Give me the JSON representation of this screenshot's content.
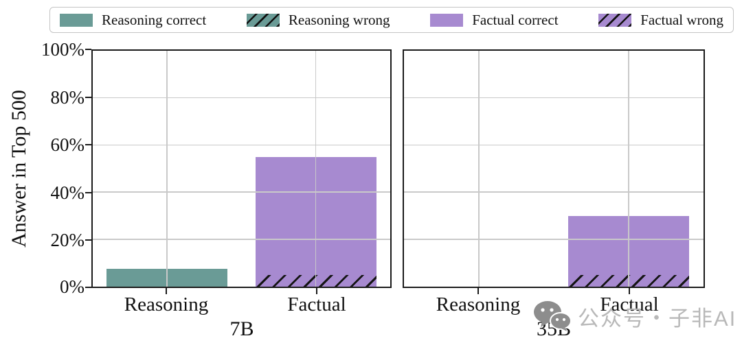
{
  "figure": {
    "legend": {
      "items": [
        {
          "label": "Reasoning correct",
          "swatch": "teal-solid"
        },
        {
          "label": "Reasoning wrong",
          "swatch": "teal-hatched"
        },
        {
          "label": "Factual correct",
          "swatch": "purple-solid"
        },
        {
          "label": "Factual wrong",
          "swatch": "purple-hatched"
        }
      ]
    },
    "y_axis": {
      "label": "Answer in Top 500",
      "tick_labels": [
        "100%",
        "80%",
        "60%",
        "40%",
        "20%",
        "0%"
      ]
    },
    "subplots": [
      {
        "xlabel": "7B",
        "x_tick_labels": [
          "Reasoning",
          "Factual"
        ],
        "bars": [
          {
            "category": "Reasoning",
            "color_key": "teal",
            "solid_pct": 7.5,
            "hatched_pct": 0
          },
          {
            "category": "Factual",
            "color_key": "purple",
            "solid_pct": 50,
            "hatched_pct": 5
          }
        ]
      },
      {
        "xlabel": "35B",
        "x_tick_labels": [
          "Reasoning",
          "Factual"
        ],
        "bars": [
          {
            "category": "Reasoning",
            "color_key": "teal",
            "solid_pct": 0,
            "hatched_pct": 0
          },
          {
            "category": "Factual",
            "color_key": "purple",
            "solid_pct": 25,
            "hatched_pct": 5
          }
        ]
      }
    ]
  },
  "colors": {
    "teal": "#6a9b96",
    "purple": "#a78ad0",
    "hatch": "#151515",
    "grid": "#c9c9c9",
    "spine": "#1a1a1a",
    "legend_border": "#c4c4c4",
    "watermark_icon": "#8d8d8d",
    "watermark_text": "#b8b8b8"
  },
  "watermark": {
    "text": "公众号・子非AI"
  },
  "chart_data": {
    "type": "bar",
    "stacked": true,
    "title": "",
    "ylabel": "Answer in Top 500",
    "ylim": [
      0,
      100
    ],
    "yticks_percent": [
      0,
      20,
      40,
      60,
      80,
      100
    ],
    "grid": true,
    "legend_position": "top",
    "legend_entries": [
      "Reasoning correct",
      "Reasoning wrong",
      "Factual correct",
      "Factual wrong"
    ],
    "subplots": [
      {
        "xlabel": "7B",
        "categories": [
          "Reasoning",
          "Factual"
        ],
        "series": [
          {
            "name": "Reasoning correct",
            "style": "teal-solid",
            "values": [
              7.5,
              0
            ]
          },
          {
            "name": "Reasoning wrong",
            "style": "teal-hatched",
            "values": [
              0,
              0
            ]
          },
          {
            "name": "Factual correct",
            "style": "purple-solid",
            "values": [
              0,
              50
            ]
          },
          {
            "name": "Factual wrong",
            "style": "purple-hatched",
            "values": [
              0,
              5
            ]
          }
        ],
        "bar_totals_pct": {
          "Reasoning": 7.5,
          "Factual": 55
        }
      },
      {
        "xlabel": "35B",
        "categories": [
          "Reasoning",
          "Factual"
        ],
        "series": [
          {
            "name": "Reasoning correct",
            "style": "teal-solid",
            "values": [
              0,
              0
            ]
          },
          {
            "name": "Reasoning wrong",
            "style": "teal-hatched",
            "values": [
              0,
              0
            ]
          },
          {
            "name": "Factual correct",
            "style": "purple-solid",
            "values": [
              0,
              25
            ]
          },
          {
            "name": "Factual wrong",
            "style": "purple-hatched",
            "values": [
              0,
              5
            ]
          }
        ],
        "bar_totals_pct": {
          "Reasoning": 0,
          "Factual": 30
        }
      }
    ]
  }
}
